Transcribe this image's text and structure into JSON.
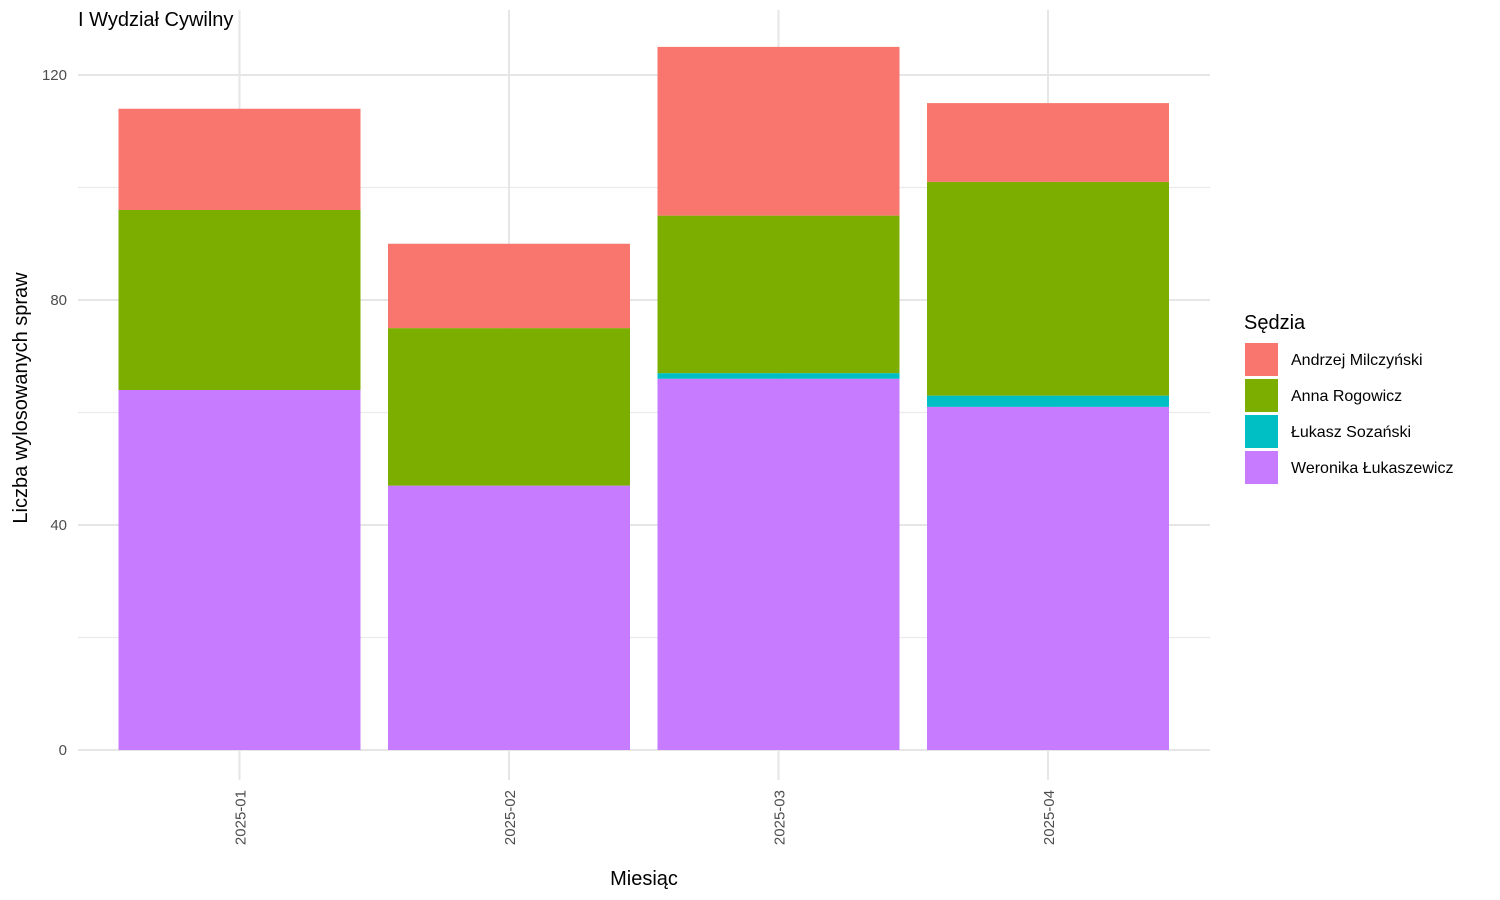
{
  "chart_data": {
    "type": "bar",
    "stacked": true,
    "title": "I Wydział Cywilny",
    "xlabel": "Miesiąc",
    "ylabel": "Liczba wylosowanych spraw",
    "categories": [
      "2025-01",
      "2025-02",
      "2025-03",
      "2025-04"
    ],
    "ylim": [
      0,
      130
    ],
    "yticks": [
      0,
      40,
      80,
      120
    ],
    "grid": true,
    "legend": {
      "title": "Sędzia",
      "placement": "right"
    },
    "series": [
      {
        "name": "Weronika Łukaszewicz",
        "color": "#C77CFF",
        "values": [
          64,
          47,
          66,
          61
        ]
      },
      {
        "name": "Łukasz Sozański",
        "color": "#00BFC4",
        "values": [
          0,
          0,
          1,
          2
        ]
      },
      {
        "name": "Anna Rogowicz",
        "color": "#7CAE00",
        "values": [
          32,
          28,
          28,
          38
        ]
      },
      {
        "name": "Andrzej Milczyński",
        "color": "#F8766D",
        "values": [
          18,
          15,
          30,
          14
        ]
      }
    ],
    "legend_order": [
      "Andrzej Milczyński",
      "Anna Rogowicz",
      "Łukasz Sozański",
      "Weronika Łukaszewicz"
    ]
  }
}
